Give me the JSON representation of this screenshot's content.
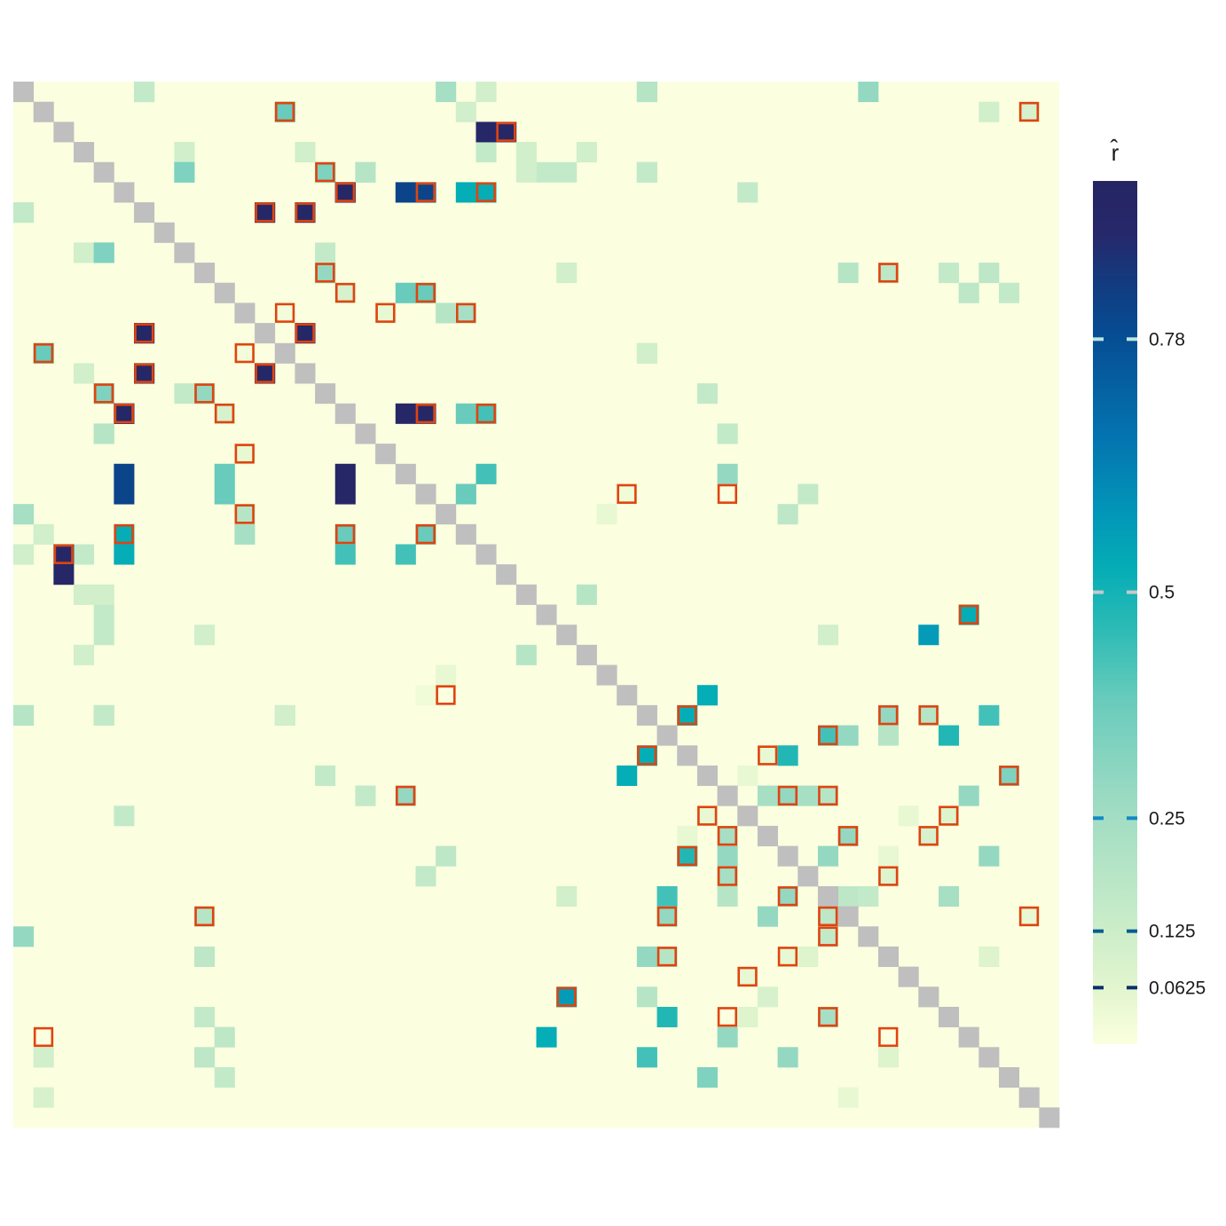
{
  "chart_data": {
    "type": "heatmap",
    "title": "",
    "xlabel": "",
    "ylabel": "",
    "n": 52,
    "diagonal": "grey",
    "colors": {
      "diagonal": "#bfbfbf",
      "highlight_border": "#e0440e",
      "scale": [
        "#fbffdf",
        "#e4f6cf",
        "#c6ebc8",
        "#9ddbc3",
        "#68cbbc",
        "#2dbbb5",
        "#05adb6",
        "#0294b8",
        "#0475b0",
        "#064d94",
        "#123b80",
        "#26286a",
        "#252563"
      ]
    },
    "scale_stops": [
      0,
      0.06,
      0.15,
      0.28,
      0.4,
      0.48,
      0.55,
      0.62,
      0.7,
      0.82,
      0.88,
      0.94,
      1
    ],
    "legend": {
      "title": "r̂",
      "position": "right",
      "range": [
        0,
        1
      ],
      "ticks": [
        {
          "label": "0.78",
          "value": 0.78,
          "mark_color": "#bde5dd"
        },
        {
          "label": "0.5",
          "value": 0.5,
          "mark_color": "#c8c8c8"
        },
        {
          "label": "0.25",
          "value": 0.25,
          "mark_color": "#0f8ac6"
        },
        {
          "label": "0.125",
          "value": 0.125,
          "mark_color": "#0a5b93"
        },
        {
          "label": "0.0625",
          "value": 0.0625,
          "mark_color": "#0b2f6c"
        }
      ]
    },
    "cells": [
      [
        0,
        6,
        0.3
      ],
      [
        0,
        31,
        0.3
      ],
      [
        0,
        21,
        0.25
      ],
      [
        0,
        42,
        0.3
      ],
      [
        0,
        23,
        0.12
      ],
      [
        1,
        13,
        0.4
      ],
      [
        1,
        50,
        0.1
      ],
      [
        1,
        22,
        0.12
      ],
      [
        2,
        24,
        0.97
      ],
      [
        3,
        8,
        0.12
      ],
      [
        3,
        14,
        0.12
      ],
      [
        3,
        23,
        0.16
      ],
      [
        3,
        28,
        0.12
      ],
      [
        4,
        15,
        0.4
      ],
      [
        4,
        31,
        0.25
      ],
      [
        4,
        8,
        0.3
      ],
      [
        4,
        17,
        0.18
      ],
      [
        4,
        26,
        0.16
      ],
      [
        5,
        16,
        0.97
      ],
      [
        5,
        20,
        0.85
      ],
      [
        5,
        23,
        0.55
      ],
      [
        5,
        36,
        0.16
      ],
      [
        6,
        12,
        0.97
      ],
      [
        6,
        14,
        0.97
      ],
      [
        6,
        0,
        0.16
      ],
      [
        8,
        4,
        0.35
      ],
      [
        8,
        15,
        0.16
      ],
      [
        9,
        15,
        0.35
      ],
      [
        9,
        43,
        0.18
      ],
      [
        9,
        48,
        0.18
      ],
      [
        10,
        16,
        0.2
      ],
      [
        10,
        20,
        0.4
      ],
      [
        10,
        49,
        0.16
      ],
      [
        11,
        13,
        0.05
      ],
      [
        11,
        18,
        0.03
      ],
      [
        11,
        22,
        0.25
      ],
      [
        12,
        6,
        0.97
      ],
      [
        12,
        14,
        0.97
      ],
      [
        13,
        1,
        0.4
      ],
      [
        13,
        11,
        0.02
      ],
      [
        13,
        31,
        0.16
      ],
      [
        14,
        6,
        0.97
      ],
      [
        14,
        12,
        0.97
      ],
      [
        15,
        4,
        0.35
      ],
      [
        15,
        9,
        0.3
      ],
      [
        15,
        34,
        0.16
      ],
      [
        16,
        5,
        0.97
      ],
      [
        16,
        10,
        0.1
      ],
      [
        16,
        20,
        0.97
      ],
      [
        16,
        23,
        0.45
      ],
      [
        17,
        4,
        0.2
      ],
      [
        17,
        35,
        0.2
      ],
      [
        18,
        11,
        0.05
      ],
      [
        19,
        5,
        0.85
      ],
      [
        19,
        10,
        0.4
      ],
      [
        19,
        16,
        0.97
      ],
      [
        19,
        23,
        0.45
      ],
      [
        20,
        30,
        0.03
      ],
      [
        20,
        39,
        0.16
      ],
      [
        21,
        11,
        0.2
      ],
      [
        22,
        5,
        0.55
      ],
      [
        22,
        16,
        0.4
      ],
      [
        22,
        20,
        0.4
      ],
      [
        23,
        2,
        0.97
      ],
      [
        25,
        3,
        0.12
      ],
      [
        25,
        4,
        0.12
      ],
      [
        25,
        28,
        0.2
      ],
      [
        26,
        47,
        0.55
      ],
      [
        27,
        4,
        0.16
      ],
      [
        27,
        9,
        0.12
      ],
      [
        27,
        40,
        0.12
      ],
      [
        29,
        21,
        0.05
      ],
      [
        30,
        34,
        0.55
      ],
      [
        31,
        0,
        0.2
      ],
      [
        31,
        4,
        0.16
      ],
      [
        31,
        13,
        0.12
      ],
      [
        31,
        43,
        0.3
      ],
      [
        31,
        45,
        0.2
      ],
      [
        31,
        48,
        0.45
      ],
      [
        32,
        40,
        0.45
      ],
      [
        33,
        31,
        0.55
      ],
      [
        33,
        37,
        0.05
      ],
      [
        34,
        49,
        0.35
      ],
      [
        35,
        19,
        0.3
      ],
      [
        35,
        17,
        0.16
      ],
      [
        35,
        38,
        0.3
      ],
      [
        35,
        40,
        0.2
      ],
      [
        36,
        34,
        0.05
      ],
      [
        36,
        46,
        0.08
      ],
      [
        37,
        35,
        0.25
      ],
      [
        37,
        41,
        0.3
      ],
      [
        37,
        45,
        0.1
      ],
      [
        38,
        21,
        0.18
      ],
      [
        38,
        33,
        0.5
      ],
      [
        38,
        48,
        0.3
      ],
      [
        39,
        35,
        0.25
      ],
      [
        39,
        43,
        0.08
      ],
      [
        40,
        38,
        0.3
      ],
      [
        41,
        9,
        0.2
      ],
      [
        41,
        32,
        0.3
      ],
      [
        41,
        40,
        0.18
      ],
      [
        41,
        50,
        0.05
      ],
      [
        42,
        40,
        0.16
      ],
      [
        43,
        32,
        0.2
      ],
      [
        43,
        38,
        0.05
      ],
      [
        44,
        36,
        0.05
      ],
      [
        45,
        27,
        0.6
      ],
      [
        45,
        45,
        0.12
      ],
      [
        46,
        32,
        0.5
      ],
      [
        46,
        40,
        0.25
      ],
      [
        46,
        9,
        0.16
      ],
      [
        47,
        35,
        0.3
      ],
      [
        47,
        10,
        0.18
      ],
      [
        48,
        1,
        0.12
      ],
      [
        48,
        43,
        0.08
      ]
    ],
    "highlighted": [
      [
        1,
        13
      ],
      [
        1,
        50
      ],
      [
        2,
        24
      ],
      [
        4,
        15
      ],
      [
        5,
        16
      ],
      [
        5,
        20
      ],
      [
        5,
        23
      ],
      [
        6,
        12
      ],
      [
        6,
        14
      ],
      [
        9,
        15
      ],
      [
        9,
        43
      ],
      [
        10,
        16
      ],
      [
        10,
        20
      ],
      [
        11,
        13
      ],
      [
        11,
        18
      ],
      [
        11,
        22
      ],
      [
        12,
        6
      ],
      [
        12,
        14
      ],
      [
        13,
        1
      ],
      [
        13,
        11
      ],
      [
        14,
        6
      ],
      [
        14,
        12
      ],
      [
        15,
        4
      ],
      [
        15,
        9
      ],
      [
        16,
        5
      ],
      [
        16,
        10
      ],
      [
        16,
        20
      ],
      [
        16,
        23
      ],
      [
        18,
        11
      ],
      [
        20,
        35
      ],
      [
        20,
        30
      ],
      [
        21,
        11
      ],
      [
        22,
        5
      ],
      [
        22,
        16
      ],
      [
        22,
        20
      ],
      [
        23,
        2
      ],
      [
        26,
        47
      ],
      [
        30,
        21
      ],
      [
        31,
        33
      ],
      [
        31,
        43
      ],
      [
        31,
        45
      ],
      [
        32,
        40
      ],
      [
        33,
        31
      ],
      [
        33,
        37
      ],
      [
        34,
        49
      ],
      [
        35,
        19
      ],
      [
        35,
        38
      ],
      [
        35,
        40
      ],
      [
        36,
        34
      ],
      [
        36,
        46
      ],
      [
        37,
        35
      ],
      [
        37,
        41
      ],
      [
        37,
        45
      ],
      [
        38,
        33
      ],
      [
        39,
        35
      ],
      [
        39,
        43
      ],
      [
        40,
        38
      ],
      [
        41,
        9
      ],
      [
        41,
        32
      ],
      [
        41,
        40
      ],
      [
        41,
        50
      ],
      [
        42,
        40
      ],
      [
        43,
        32
      ],
      [
        43,
        38
      ],
      [
        44,
        36
      ],
      [
        45,
        27
      ],
      [
        46,
        35
      ],
      [
        46,
        40
      ],
      [
        47,
        1
      ],
      [
        47,
        43
      ]
    ]
  }
}
